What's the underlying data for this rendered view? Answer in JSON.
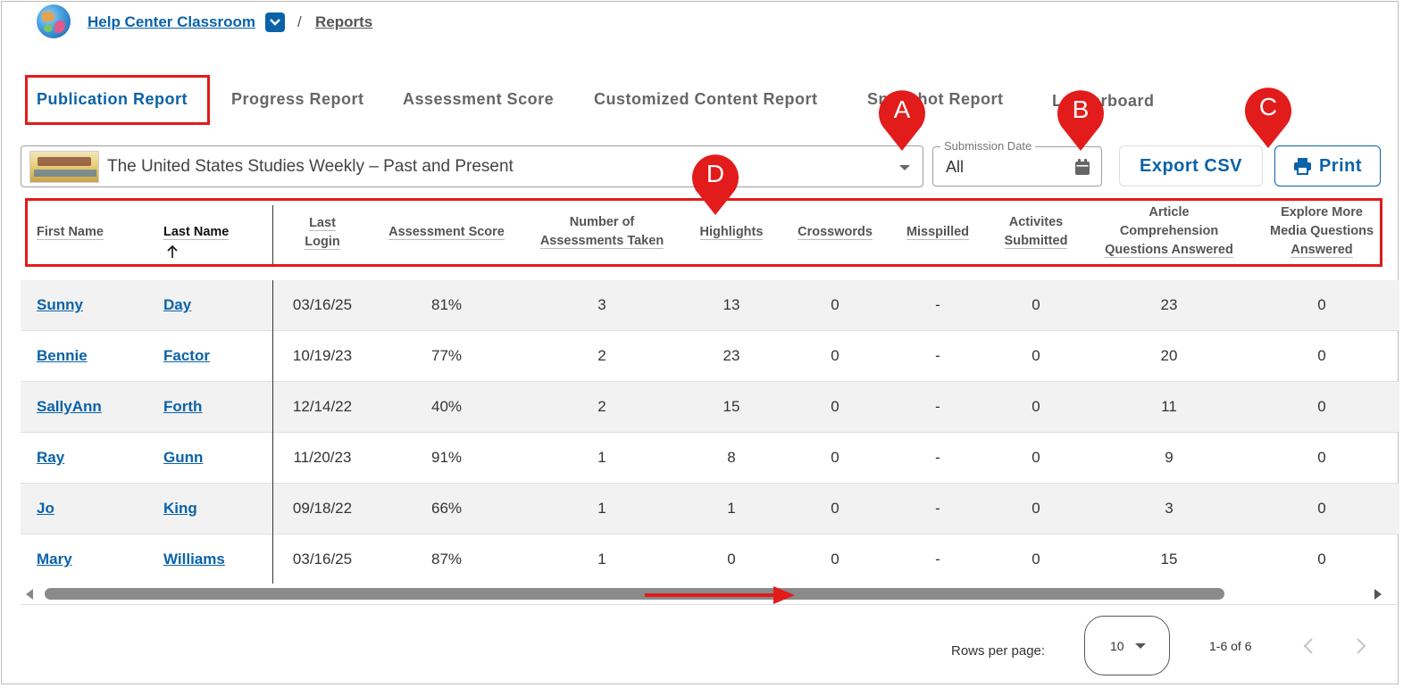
{
  "breadcrumb": {
    "class_name": "Help Center Classroom",
    "separator": "/",
    "current": "Reports"
  },
  "tabs": [
    {
      "label": "Publication Report",
      "active": true
    },
    {
      "label": "Progress Report",
      "active": false
    },
    {
      "label": "Assessment Score",
      "active": false
    },
    {
      "label": "Customized Content Report",
      "active": false
    },
    {
      "label": "Snapshot Report",
      "active": false
    },
    {
      "label": "Leaderboard",
      "active": false
    }
  ],
  "publication_select": {
    "value": "The United States Studies Weekly – Past and Present"
  },
  "submission_date": {
    "label": "Submission Date",
    "value": "All"
  },
  "buttons": {
    "export": "Export CSV",
    "print": "Print"
  },
  "callouts": {
    "a": "A",
    "b": "B",
    "c": "C",
    "d": "D"
  },
  "table": {
    "headers": {
      "first_name": "First Name",
      "last_name": "Last Name",
      "last_login": "Last Login",
      "assessment_score": "Assessment Score",
      "num_assessments_1": "Number of",
      "num_assessments_2": "Assessments Taken",
      "highlights": "Highlights",
      "crosswords": "Crosswords",
      "misspilled": "Misspilled",
      "activites_1": "Activites",
      "activites_2": "Submitted",
      "article_1": "Article",
      "article_2": "Comprehension",
      "article_3": "Questions Answered",
      "explore_1": "Explore More",
      "explore_2": "Media Questions",
      "explore_3": "Answered"
    },
    "rows": [
      {
        "first": "Sunny",
        "last": "Day",
        "login": "03/16/25",
        "score": "81%",
        "taken": "3",
        "highlights": "13",
        "crosswords": "0",
        "misspilled": "-",
        "activities": "0",
        "article": "23",
        "explore": "0"
      },
      {
        "first": "Bennie",
        "last": "Factor",
        "login": "10/19/23",
        "score": "77%",
        "taken": "2",
        "highlights": "23",
        "crosswords": "0",
        "misspilled": "-",
        "activities": "0",
        "article": "20",
        "explore": "0"
      },
      {
        "first": "SallyAnn",
        "last": "Forth",
        "login": "12/14/22",
        "score": "40%",
        "taken": "2",
        "highlights": "15",
        "crosswords": "0",
        "misspilled": "-",
        "activities": "0",
        "article": "11",
        "explore": "0"
      },
      {
        "first": "Ray",
        "last": "Gunn",
        "login": "11/20/23",
        "score": "91%",
        "taken": "1",
        "highlights": "8",
        "crosswords": "0",
        "misspilled": "-",
        "activities": "0",
        "article": "9",
        "explore": "0"
      },
      {
        "first": "Jo",
        "last": "King",
        "login": "09/18/22",
        "score": "66%",
        "taken": "1",
        "highlights": "1",
        "crosswords": "0",
        "misspilled": "-",
        "activities": "0",
        "article": "3",
        "explore": "0"
      },
      {
        "first": "Mary",
        "last": "Williams",
        "login": "03/16/25",
        "score": "87%",
        "taken": "1",
        "highlights": "0",
        "crosswords": "0",
        "misspilled": "-",
        "activities": "0",
        "article": "15",
        "explore": "0"
      }
    ]
  },
  "pagination": {
    "rows_per_page_label": "Rows per page:",
    "rows_per_page": "10",
    "range": "1-6 of 6"
  },
  "colors": {
    "accent": "#0a62a8",
    "annotation_red": "#e21b1b",
    "alt_row": "#f2f2f2"
  }
}
